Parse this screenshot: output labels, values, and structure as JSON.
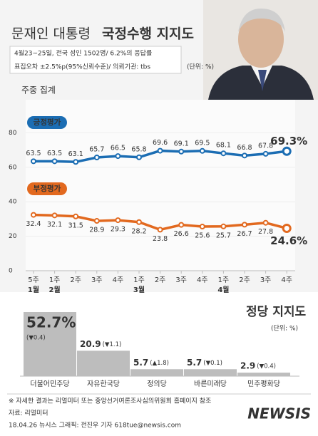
{
  "chart_data": [
    {
      "type": "line",
      "title": "문재인 대통령",
      "title_bold": "국정수행 지지도",
      "notes": [
        "4월23~25일, 전국 성인 1502명/ 6.2%의 응답률",
        "표집오차 ±2.5%p(95%신뢰수준)/ 의뢰기관: tbs"
      ],
      "unit": "(단위: %)",
      "subtitle": "주중 집계",
      "categories": [
        "5주",
        "1주",
        "2주",
        "3주",
        "4주",
        "1주",
        "2주",
        "3주",
        "4주",
        "1주",
        "2주",
        "3주",
        "4주"
      ],
      "month_labels": [
        "1월",
        "2월",
        null,
        null,
        null,
        "3월",
        null,
        null,
        null,
        "4월",
        null,
        null,
        null
      ],
      "series": [
        {
          "name": "긍정평가",
          "color": "#1b6db3",
          "values": [
            63.5,
            63.5,
            63.1,
            65.7,
            66.5,
            65.8,
            69.6,
            69.1,
            69.5,
            68.1,
            66.8,
            67.8,
            69.3
          ],
          "value_labels": [
            "63.5",
            "63.5",
            "63.1",
            "65.7",
            "66.5",
            "65.8",
            "69.6",
            "69.1",
            "69.5",
            "68.1",
            "66.8",
            "67.8",
            "69.3%"
          ]
        },
        {
          "name": "부정평가",
          "color": "#e2691f",
          "values": [
            32.4,
            32.1,
            31.5,
            28.9,
            29.3,
            28.2,
            23.8,
            26.6,
            25.6,
            25.7,
            26.7,
            27.8,
            24.6
          ],
          "value_labels": [
            "32.4",
            "32.1",
            "31.5",
            "28.9",
            "29.3",
            "28.2",
            "23.8",
            "26.6",
            "25.6",
            "25.7",
            "26.7",
            "27.8",
            "24.6%"
          ]
        }
      ],
      "ylim": [
        0,
        100
      ],
      "yticks": [
        0,
        20,
        40,
        60,
        80
      ]
    },
    {
      "type": "bar",
      "title": "정당 지지도",
      "unit": "(단위: %)",
      "categories": [
        "더불어민주당",
        "자유한국당",
        "정의당",
        "바른미래당",
        "민주평화당"
      ],
      "colors": [
        "#1b7bc6",
        "#d2232a",
        "#e8b800",
        "#1aa3b0",
        "#3aa74a"
      ],
      "bar_color": "#bdbdbd",
      "values": [
        52.7,
        20.9,
        5.7,
        5.7,
        2.9
      ],
      "value_labels": [
        "52.7%",
        "20.9",
        "5.7",
        "5.7",
        "2.9"
      ],
      "changes": [
        "(▼0.4)",
        "(▼1.1)",
        "(▲1.8)",
        "(▼0.1)",
        "(▼0.4)"
      ],
      "ylim": [
        0,
        52.7
      ]
    }
  ],
  "footer": {
    "note": "※ 자세한 결과는 리얼미터 또는 중앙선거여론조사심의위원회 홈페이지 참조",
    "source": "자료: 리얼미터",
    "credit": "18.04.26 뉴시스 그래픽: 전진우 기자 618tue@newsis.com",
    "logo": "NEWSIS"
  }
}
